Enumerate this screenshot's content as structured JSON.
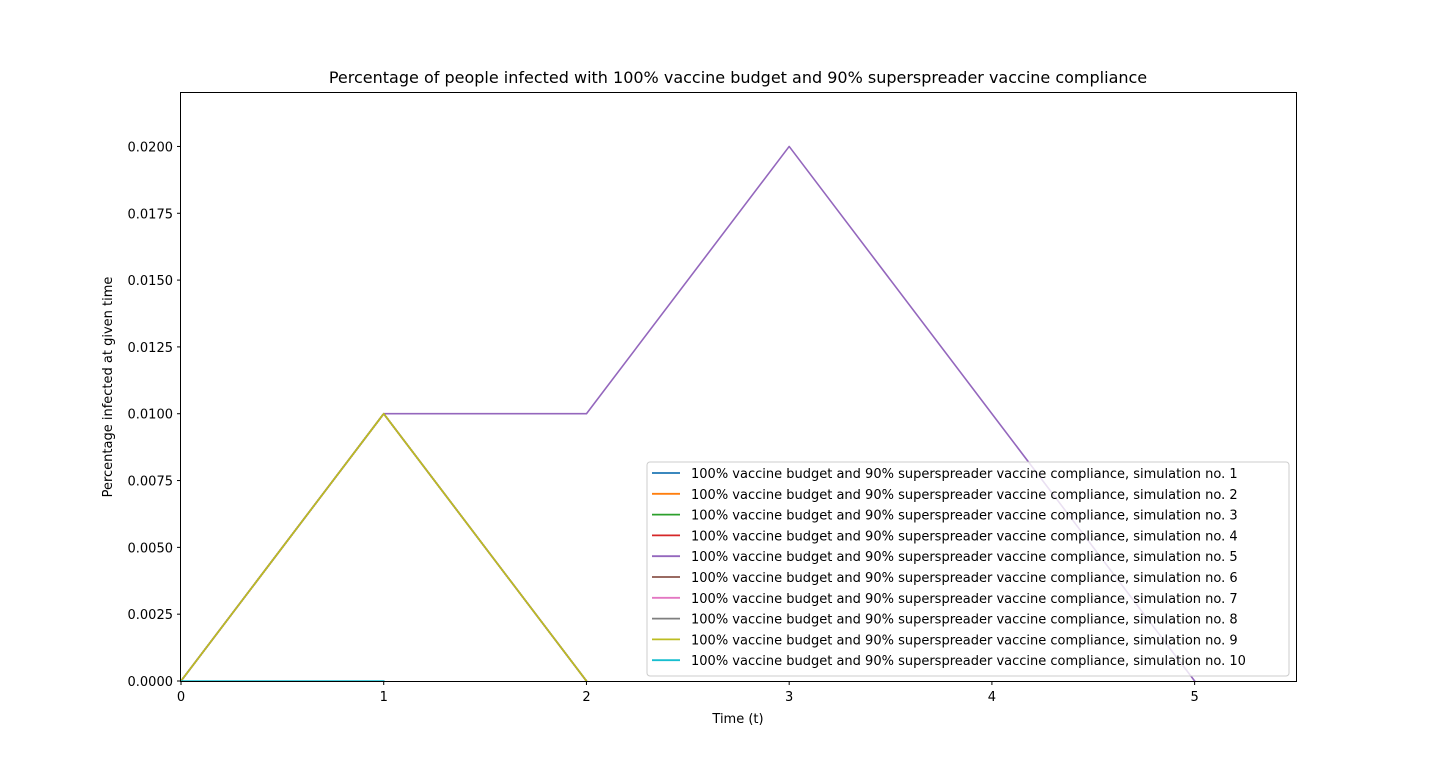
{
  "chart_data": {
    "type": "line",
    "title": "Percentage of people infected with 100% vaccine budget and 90% superspreader vaccine compliance",
    "xlabel": "Time (t)",
    "ylabel": "Percentage infected at given time",
    "xlim": [
      0,
      5.5
    ],
    "ylim": [
      0,
      0.022
    ],
    "xticks": [
      0,
      1,
      2,
      3,
      4,
      5
    ],
    "xtick_labels": [
      "0",
      "1",
      "2",
      "3",
      "4",
      "5"
    ],
    "yticks": [
      0,
      0.0025,
      0.005,
      0.0075,
      0.01,
      0.0125,
      0.015,
      0.0175,
      0.02
    ],
    "ytick_labels": [
      "0.0000",
      "0.0025",
      "0.0050",
      "0.0075",
      "0.0100",
      "0.0125",
      "0.0150",
      "0.0175",
      "0.0200"
    ],
    "grid": false,
    "legend_position": "lower-right",
    "series": [
      {
        "name": "100% vaccine budget and 90% superspreader vaccine compliance, simulation no. 1",
        "color": "#1f77b4",
        "x": [
          0,
          1,
          2
        ],
        "y": [
          0,
          0.01,
          0
        ]
      },
      {
        "name": "100% vaccine budget and 90% superspreader vaccine compliance, simulation no. 2",
        "color": "#ff7f0e",
        "x": [
          0,
          1,
          2
        ],
        "y": [
          0,
          0.01,
          0
        ]
      },
      {
        "name": "100% vaccine budget and 90% superspreader vaccine compliance, simulation no. 3",
        "color": "#2ca02c",
        "x": [
          0,
          1,
          2
        ],
        "y": [
          0,
          0.01,
          0
        ]
      },
      {
        "name": "100% vaccine budget and 90% superspreader vaccine compliance, simulation no. 4",
        "color": "#d62728",
        "x": [
          0,
          1,
          2
        ],
        "y": [
          0,
          0.01,
          0
        ]
      },
      {
        "name": "100% vaccine budget and 90% superspreader vaccine compliance, simulation no. 5",
        "color": "#9467bd",
        "x": [
          0,
          1,
          2,
          3,
          4,
          5
        ],
        "y": [
          0,
          0.01,
          0.01,
          0.02,
          0.01,
          0
        ]
      },
      {
        "name": "100% vaccine budget and 90% superspreader vaccine compliance, simulation no. 6",
        "color": "#8c564b",
        "x": [
          0,
          1,
          2
        ],
        "y": [
          0,
          0.01,
          0
        ]
      },
      {
        "name": "100% vaccine budget and 90% superspreader vaccine compliance, simulation no. 7",
        "color": "#e377c2",
        "x": [
          0,
          1,
          2
        ],
        "y": [
          0,
          0.01,
          0
        ]
      },
      {
        "name": "100% vaccine budget and 90% superspreader vaccine compliance, simulation no. 8",
        "color": "#7f7f7f",
        "x": [
          0,
          1,
          2
        ],
        "y": [
          0,
          0.01,
          0
        ]
      },
      {
        "name": "100% vaccine budget and 90% superspreader vaccine compliance, simulation no. 9",
        "color": "#bcbd22",
        "x": [
          0,
          1,
          2
        ],
        "y": [
          0,
          0.01,
          0
        ]
      },
      {
        "name": "100% vaccine budget and 90% superspreader vaccine compliance, simulation no. 10",
        "color": "#17becf",
        "x": [
          0,
          1
        ],
        "y": [
          0,
          0
        ]
      }
    ]
  }
}
